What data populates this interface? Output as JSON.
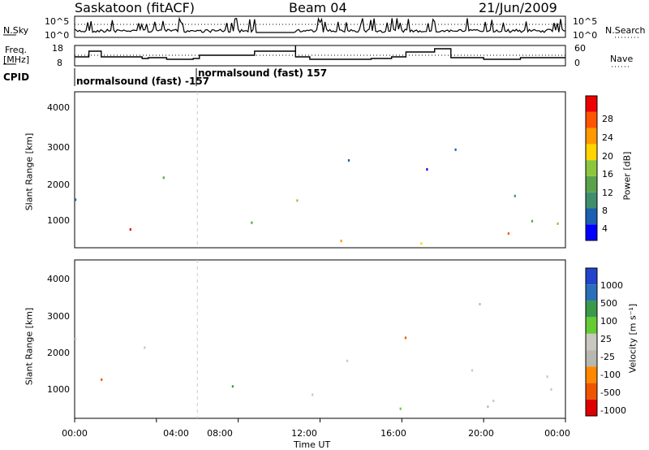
{
  "header": {
    "station": "Saskatoon (fitACF)",
    "beam": "Beam 04",
    "date": "21/Jun/2009"
  },
  "panels": {
    "nsky": {
      "left_label": "N.Sky",
      "left_ticks": [
        "10^5",
        "10^0"
      ],
      "right_ticks": [
        "10^5",
        "10^0"
      ],
      "right_label": "N.Search"
    },
    "freq": {
      "left_label_1": "Freq.",
      "left_label_2": "[MHz]",
      "left_ticks": [
        "18",
        "8"
      ],
      "right_ticks": [
        "60",
        "0"
      ],
      "right_label": "Nave"
    },
    "cpid": {
      "label": "CPID",
      "segments": [
        "normalsound (fast) -157",
        "normalsound (fast) 157"
      ]
    }
  },
  "chart_data": [
    {
      "type": "heatmap",
      "title": "",
      "quantity": "Power",
      "ylabel": "Slant Range [km]",
      "xlabel": "",
      "yticks": [
        1000,
        2000,
        3000,
        4000
      ],
      "ylim": [
        200,
        4600
      ],
      "xticks": [
        "00:00",
        "04:00",
        "08:00",
        "12:00",
        "16:00",
        "20:00",
        "00:00"
      ],
      "xlim_hours": [
        0,
        24
      ],
      "colorbar": {
        "label": "Power [dB]",
        "ticks": [
          4,
          8,
          12,
          16,
          20,
          24,
          28
        ],
        "range": [
          0,
          32
        ]
      },
      "data_gap_hours": [
        8.8,
        10.8
      ]
    },
    {
      "type": "heatmap",
      "title": "",
      "quantity": "Velocity",
      "ylabel": "Slant Range [km]",
      "xlabel": "Time UT",
      "yticks": [
        1000,
        2000,
        3000,
        4000
      ],
      "ylim": [
        200,
        4600
      ],
      "xticks": [
        "00:00",
        "04:00",
        "08:00",
        "12:00",
        "16:00",
        "20:00",
        "00:00"
      ],
      "xlim_hours": [
        0,
        24
      ],
      "colorbar": {
        "label": "Velocity [m s⁻¹]",
        "ticks": [
          "1000",
          "500",
          "100",
          "25",
          "-25",
          "-100",
          "-500",
          "-1000"
        ]
      },
      "data_gap_hours": [
        8.8,
        10.8
      ]
    }
  ],
  "colors": {
    "power_scale": [
      "#0000ff",
      "#1d5fb0",
      "#3f8f6e",
      "#5aa34c",
      "#8cc63f",
      "#ffd400",
      "#ff9900",
      "#ff5500",
      "#ee0000"
    ],
    "velocity_scale": [
      "#2244cc",
      "#2a6fb8",
      "#3a9a4a",
      "#66cc33",
      "#c8c8c0",
      "#b8b8b0",
      "#ff8800",
      "#ee5500",
      "#dd0000"
    ]
  }
}
